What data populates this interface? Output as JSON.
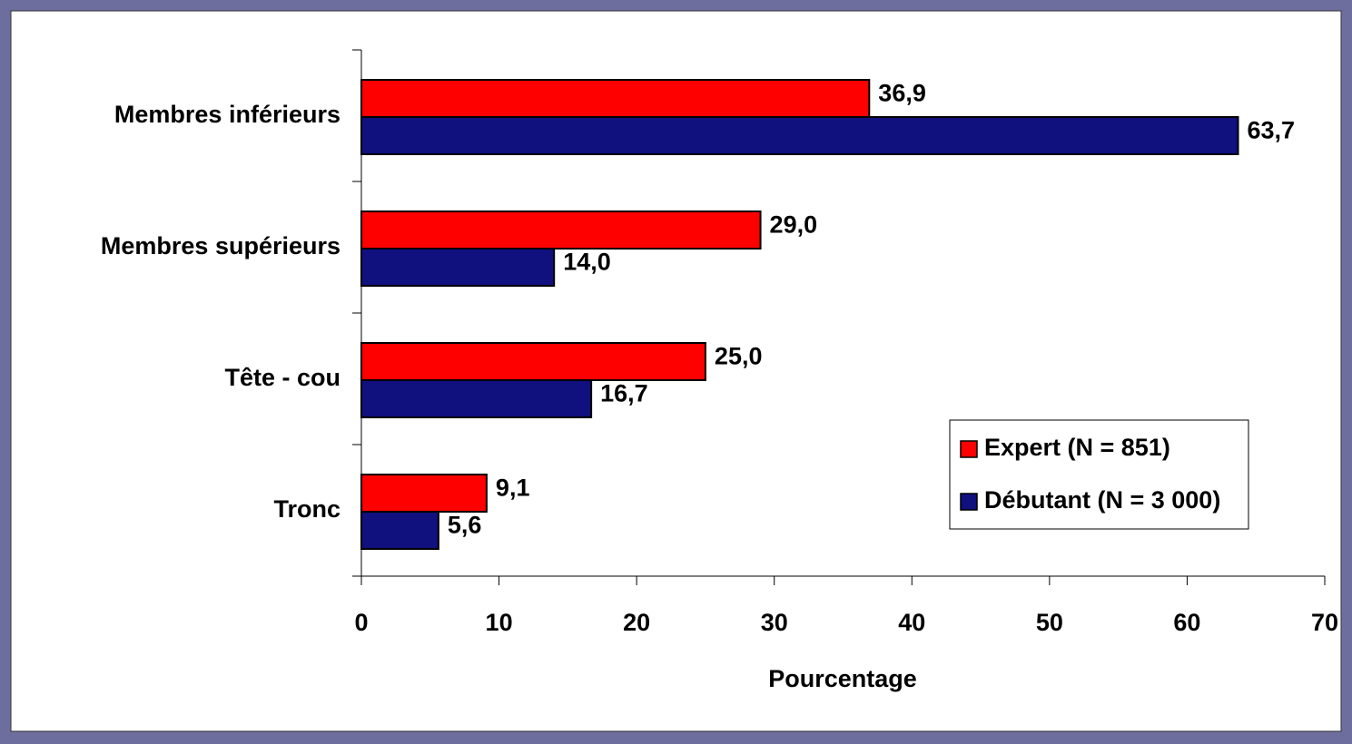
{
  "chart_data": {
    "type": "bar",
    "orientation": "horizontal",
    "categories": [
      "Membres inférieurs",
      "Membres supérieurs",
      "Tête - cou",
      "Tronc"
    ],
    "series": [
      {
        "name": "Expert (N = 851)",
        "color": "#ff0000",
        "values": [
          36.9,
          29.0,
          25.0,
          9.1
        ],
        "value_labels": [
          "36,9",
          "29,0",
          "25,0",
          "9,1"
        ]
      },
      {
        "name": "Débutant (N = 3 000)",
        "color": "#10107f",
        "values": [
          63.7,
          14.0,
          16.7,
          5.6
        ],
        "value_labels": [
          "63,7",
          "14,0",
          "16,7",
          "5,6"
        ]
      }
    ],
    "xlabel": "Pourcentage",
    "xlim": [
      0,
      70
    ],
    "xticks": [
      0,
      10,
      20,
      30,
      40,
      50,
      60,
      70
    ],
    "legend": "lower right"
  }
}
